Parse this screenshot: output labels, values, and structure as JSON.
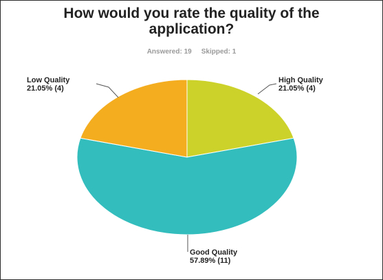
{
  "chart_data": {
    "type": "pie",
    "title_lines": [
      "How would you rate the quality of the",
      "application?"
    ],
    "answered_label": "Answered: 19",
    "skipped_label": "Skipped: 1",
    "slices": [
      {
        "name": "High Quality",
        "percent_label": "21.05% (4)",
        "value": 4,
        "color": "#cdd22b"
      },
      {
        "name": "Good Quality",
        "percent_label": "57.89% (11)",
        "value": 11,
        "color": "#33bdbd"
      },
      {
        "name": "Low Quality",
        "percent_label": "21.05% (4)",
        "value": 4,
        "color": "#f5ad20"
      }
    ],
    "start": "top",
    "direction": "clockwise",
    "legend": "none"
  }
}
